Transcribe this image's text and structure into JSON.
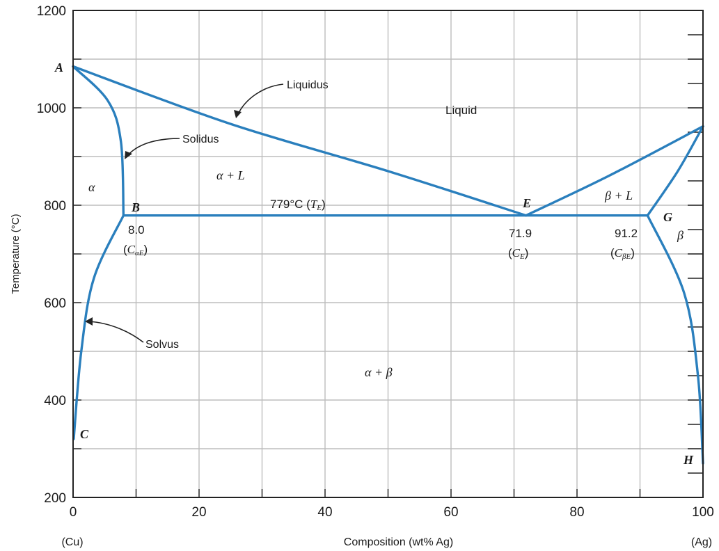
{
  "chart_data": {
    "type": "phase-diagram",
    "xlabel": "Composition (wt% Ag)",
    "ylabel": "Temperature (°C)",
    "xlim": [
      0,
      100
    ],
    "ylim": [
      200,
      1200
    ],
    "x_ticks": [
      "0",
      "20",
      "40",
      "60",
      "80",
      "100"
    ],
    "y_ticks": [
      "200",
      "400",
      "600",
      "800",
      "1000",
      "1200"
    ],
    "x_tick_values": [
      0,
      20,
      40,
      60,
      80,
      100
    ],
    "y_tick_values": [
      200,
      400,
      600,
      800,
      1000,
      1200
    ],
    "grid": true,
    "x_end_left": "(Cu)",
    "x_end_right": "(Ag)",
    "series": [
      {
        "points": [
          [
            0,
            1085
          ],
          [
            25,
            967
          ],
          [
            50,
            870
          ],
          [
            71.9,
            779
          ]
        ]
      },
      {
        "points": [
          [
            71.9,
            779
          ],
          [
            85,
            860
          ],
          [
            100,
            962
          ]
        ]
      },
      {
        "points": [
          [
            0,
            1085
          ],
          [
            5.5,
            1015
          ],
          [
            7.6,
            930
          ],
          [
            8.0,
            779
          ]
        ]
      },
      {
        "points": [
          [
            100,
            962
          ],
          [
            96,
            870
          ],
          [
            91.2,
            779
          ]
        ]
      },
      {
        "points": [
          [
            8.0,
            779
          ],
          [
            91.2,
            779
          ]
        ]
      },
      {
        "points": [
          [
            8.0,
            779
          ],
          [
            3.3,
            650
          ],
          [
            1.3,
            500
          ],
          [
            0.1,
            320
          ]
        ]
      },
      {
        "points": [
          [
            91.2,
            779
          ],
          [
            97,
            620
          ],
          [
            99.2,
            450
          ],
          [
            100,
            270
          ]
        ]
      }
    ],
    "points": [
      {
        "label": "A",
        "x": 0,
        "y": 1085
      },
      {
        "label": "B",
        "x": 8.0,
        "y": 779
      },
      {
        "label": "C",
        "x": 0,
        "y": 330
      },
      {
        "label": "E",
        "x": 71.9,
        "y": 779
      },
      {
        "label": "G",
        "x": 91.2,
        "y": 779
      },
      {
        "label": "H",
        "x": 100,
        "y": 300
      }
    ],
    "annotations": {
      "liquidus": "Liquidus",
      "solidus": "Solidus",
      "solvus": "Solvus",
      "eutectic_temp": "779°C (",
      "eutectic_temp_symbol": "T",
      "eutectic_temp_sub": "E",
      "eutectic_temp_close": ")",
      "b_value": "8.0",
      "b_sym": "C",
      "b_sub": "αE",
      "e_value": "71.9",
      "e_sym": "C",
      "e_sub": "E",
      "g_value": "91.2",
      "g_sym": "C",
      "g_sub": "βE"
    },
    "regions": {
      "liquid": "Liquid",
      "alpha": "α",
      "alpha_plus_l": "α + L",
      "beta": "β",
      "beta_plus_l": "β + L",
      "alpha_plus_beta": "α + β"
    }
  }
}
